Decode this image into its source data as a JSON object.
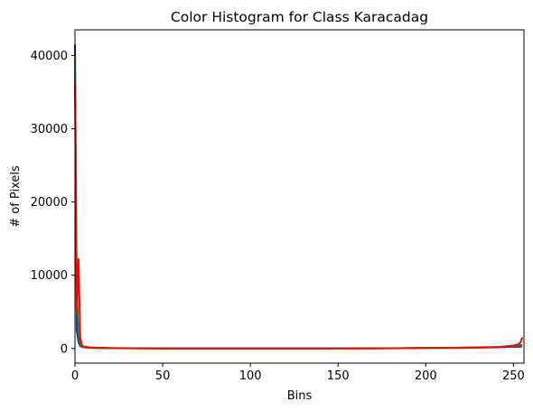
{
  "chart_data": {
    "type": "line",
    "title": "Color Histogram for Class Karacadag",
    "xlabel": "Bins",
    "ylabel": "# of Pixels",
    "xlim": [
      0,
      256
    ],
    "ylim": [
      -2000,
      43500
    ],
    "xticks": [
      0,
      50,
      100,
      150,
      200,
      250
    ],
    "yticks": [
      0,
      10000,
      20000,
      30000,
      40000
    ],
    "grid": false,
    "legend": "none",
    "series": [
      {
        "color": "#1f1fc0",
        "points": [
          [
            0,
            41500
          ],
          [
            1,
            2500
          ],
          [
            2,
            900
          ],
          [
            3,
            300
          ],
          [
            5,
            150
          ],
          [
            10,
            80
          ],
          [
            20,
            30
          ],
          [
            50,
            10
          ],
          [
            100,
            10
          ],
          [
            150,
            10
          ],
          [
            180,
            20
          ],
          [
            200,
            60
          ],
          [
            220,
            100
          ],
          [
            240,
            180
          ],
          [
            250,
            220
          ],
          [
            254,
            250
          ],
          [
            255,
            300
          ]
        ]
      },
      {
        "color": "#1a8a1a",
        "points": [
          [
            0,
            40000
          ],
          [
            1,
            8000
          ],
          [
            2,
            2000
          ],
          [
            3,
            400
          ],
          [
            5,
            150
          ],
          [
            10,
            80
          ],
          [
            20,
            30
          ],
          [
            50,
            10
          ],
          [
            100,
            10
          ],
          [
            150,
            10
          ],
          [
            185,
            40
          ],
          [
            200,
            100
          ],
          [
            220,
            120
          ],
          [
            240,
            200
          ],
          [
            250,
            300
          ],
          [
            254,
            450
          ],
          [
            255,
            500
          ]
        ]
      },
      {
        "color": "#ff0000",
        "points": [
          [
            0,
            36000
          ],
          [
            1,
            5000
          ],
          [
            2,
            12200
          ],
          [
            3,
            1500
          ],
          [
            4,
            400
          ],
          [
            5,
            250
          ],
          [
            10,
            120
          ],
          [
            20,
            60
          ],
          [
            50,
            20
          ],
          [
            100,
            15
          ],
          [
            150,
            15
          ],
          [
            180,
            30
          ],
          [
            200,
            60
          ],
          [
            220,
            70
          ],
          [
            240,
            150
          ],
          [
            250,
            400
          ],
          [
            253,
            600
          ],
          [
            254,
            800
          ],
          [
            255,
            1500
          ]
        ]
      }
    ]
  }
}
